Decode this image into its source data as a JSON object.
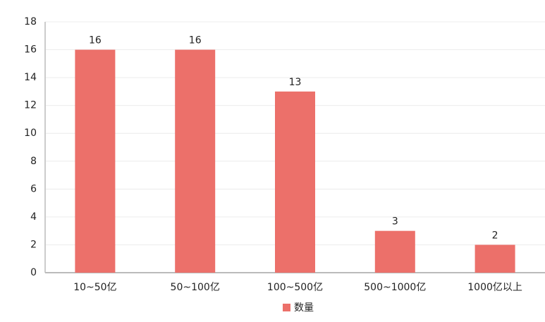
{
  "chart_data": {
    "type": "bar",
    "categories": [
      "10~50亿",
      "50~100亿",
      "100~500亿",
      "500~1000亿",
      "1000亿以上"
    ],
    "series": [
      {
        "name": "数量",
        "color": "#ec706a",
        "values": [
          16,
          16,
          13,
          3,
          2
        ]
      }
    ],
    "ylim": [
      0,
      18
    ],
    "yticks": [
      0,
      2,
      4,
      6,
      8,
      10,
      12,
      14,
      16,
      18
    ],
    "grid": true,
    "legend": "bottom"
  }
}
